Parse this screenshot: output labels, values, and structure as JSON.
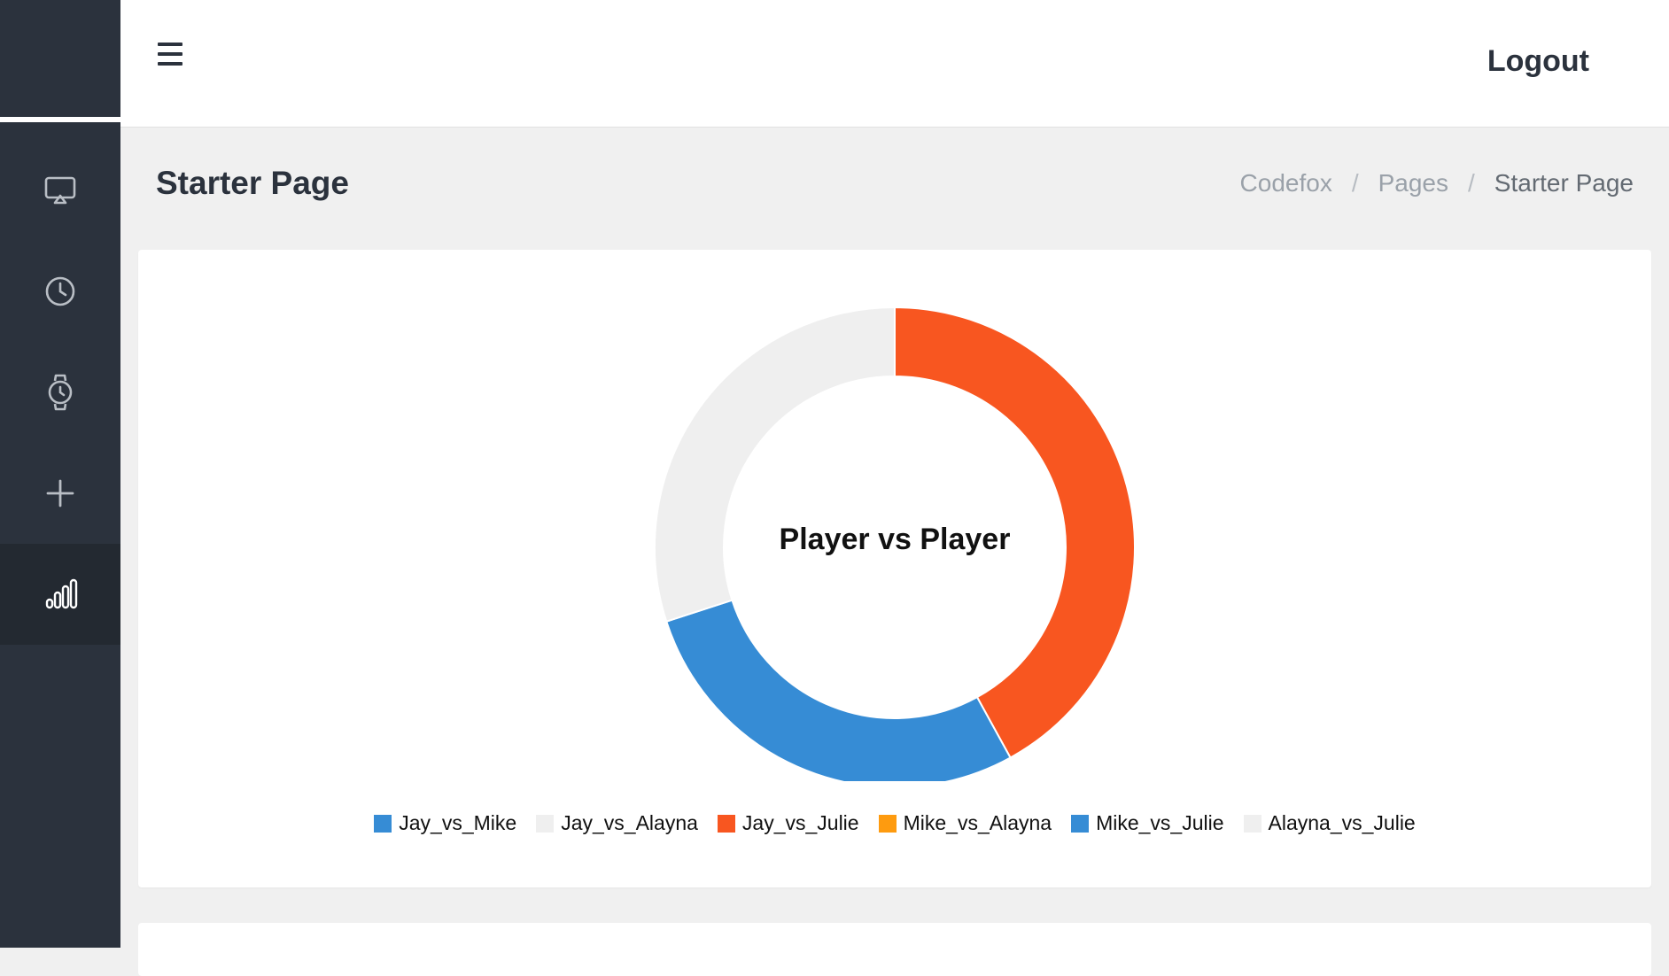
{
  "sidebar": {
    "items": [
      {
        "icon": "monitor-icon",
        "active": false
      },
      {
        "icon": "clock-icon",
        "active": false
      },
      {
        "icon": "watch-icon",
        "active": false
      },
      {
        "icon": "plus-icon",
        "active": false
      },
      {
        "icon": "bar-chart-icon",
        "active": true
      }
    ]
  },
  "header": {
    "menu_icon": "hamburger-icon",
    "logout_label": "Logout"
  },
  "page": {
    "title": "Starter Page",
    "breadcrumb": [
      "Codefox",
      "Pages",
      "Starter Page"
    ],
    "separator": "/"
  },
  "chart_data": {
    "type": "pie",
    "variant": "donut",
    "center_label": "Player vs Player",
    "categories": [
      "Jay_vs_Mike",
      "Jay_vs_Alayna",
      "Jay_vs_Julie",
      "Mike_vs_Alayna",
      "Mike_vs_Julie",
      "Alayna_vs_Julie"
    ],
    "values": [
      0,
      0,
      42,
      0,
      28,
      30
    ],
    "colors": [
      "#368cd5",
      "#efefef",
      "#f85620",
      "#fe9b0f",
      "#368cd5",
      "#efefef"
    ],
    "legend_position": "bottom"
  }
}
